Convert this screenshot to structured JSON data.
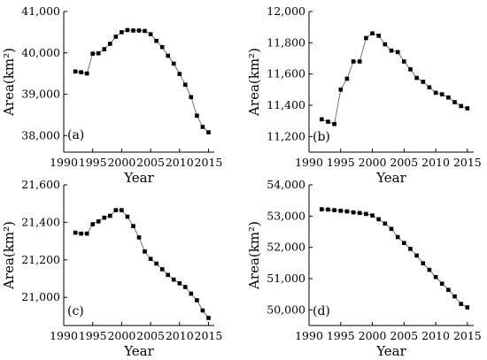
{
  "chart_data": [
    {
      "type": "line",
      "tag": "(a)",
      "xlabel": "Year",
      "ylabel": "Area(km²)",
      "xlim": [
        1990,
        2016
      ],
      "ylim": [
        37600,
        41000
      ],
      "xticks": [
        1990,
        1995,
        2000,
        2005,
        2010,
        2015
      ],
      "yticks": [
        38000,
        39000,
        40000,
        41000
      ],
      "ytick_labels": [
        "38,000",
        "39,000",
        "40,000",
        "41,000"
      ],
      "x": [
        1992,
        1993,
        1994,
        1995,
        1996,
        1997,
        1998,
        1999,
        2000,
        2001,
        2002,
        2003,
        2004,
        2005,
        2006,
        2007,
        2008,
        2009,
        2010,
        2011,
        2012,
        2013,
        2014,
        2015
      ],
      "y": [
        39550,
        39530,
        39500,
        39980,
        39990,
        40090,
        40220,
        40390,
        40500,
        40550,
        40540,
        40540,
        40530,
        40450,
        40290,
        40140,
        39930,
        39740,
        39490,
        39230,
        38930,
        38480,
        38210,
        38080
      ]
    },
    {
      "type": "line",
      "tag": "(b)",
      "xlabel": "Year",
      "ylabel": "Area(km²)",
      "xlim": [
        1990,
        2016
      ],
      "ylim": [
        11100,
        12000
      ],
      "xticks": [
        1990,
        1995,
        2000,
        2005,
        2010,
        2015
      ],
      "yticks": [
        11200,
        11400,
        11600,
        11800,
        12000
      ],
      "ytick_labels": [
        "11,200",
        "11,400",
        "11,600",
        "11,800",
        "12,000"
      ],
      "x": [
        1992,
        1993,
        1994,
        1995,
        1996,
        1997,
        1998,
        1999,
        2000,
        2001,
        2002,
        2003,
        2004,
        2005,
        2006,
        2007,
        2008,
        2009,
        2010,
        2011,
        2012,
        2013,
        2014,
        2015
      ],
      "y": [
        11310,
        11295,
        11280,
        11500,
        11570,
        11680,
        11680,
        11830,
        11860,
        11845,
        11790,
        11750,
        11740,
        11680,
        11630,
        11575,
        11550,
        11515,
        11480,
        11470,
        11450,
        11420,
        11395,
        11380
      ]
    },
    {
      "type": "line",
      "tag": "(c)",
      "xlabel": "Year",
      "ylabel": "Area(km²)",
      "xlim": [
        1990,
        2016
      ],
      "ylim": [
        20850,
        21600
      ],
      "xticks": [
        1990,
        1995,
        2000,
        2005,
        2010,
        2015
      ],
      "yticks": [
        21000,
        21200,
        21400,
        21600
      ],
      "ytick_labels": [
        "21,000",
        "21,200",
        "21,400",
        "21,600"
      ],
      "x": [
        1992,
        1993,
        1994,
        1995,
        1996,
        1997,
        1998,
        1999,
        2000,
        2001,
        2002,
        2003,
        2004,
        2005,
        2006,
        2007,
        2008,
        2009,
        2010,
        2011,
        2012,
        2013,
        2014,
        2015
      ],
      "y": [
        21345,
        21340,
        21340,
        21390,
        21405,
        21425,
        21435,
        21465,
        21465,
        21430,
        21380,
        21320,
        21245,
        21205,
        21180,
        21150,
        21120,
        21095,
        21075,
        21055,
        21020,
        20985,
        20930,
        20890
      ]
    },
    {
      "type": "line",
      "tag": "(d)",
      "xlabel": "Year",
      "ylabel": "Area(km²)",
      "xlim": [
        1990,
        2016
      ],
      "ylim": [
        49500,
        54000
      ],
      "xticks": [
        1990,
        1995,
        2000,
        2005,
        2010,
        2015
      ],
      "yticks": [
        50000,
        51000,
        52000,
        53000,
        54000
      ],
      "ytick_labels": [
        "50,000",
        "51,000",
        "52,000",
        "53,000",
        "54,000"
      ],
      "x": [
        1992,
        1993,
        1994,
        1995,
        1996,
        1997,
        1998,
        1999,
        2000,
        2001,
        2002,
        2003,
        2004,
        2005,
        2006,
        2007,
        2008,
        2009,
        2010,
        2011,
        2012,
        2013,
        2014,
        2015
      ],
      "y": [
        53220,
        53210,
        53190,
        53170,
        53150,
        53120,
        53100,
        53070,
        53020,
        52900,
        52760,
        52590,
        52330,
        52140,
        51950,
        51740,
        51490,
        51280,
        51050,
        50840,
        50640,
        50430,
        50190,
        50080
      ]
    }
  ]
}
